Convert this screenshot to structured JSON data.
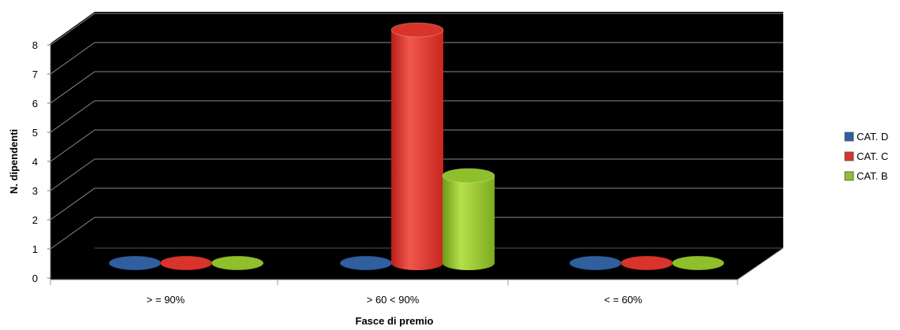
{
  "chart_data": {
    "type": "bar",
    "title": "",
    "xlabel": "Fasce di premio",
    "ylabel": "N. dipendenti",
    "ylim": [
      0,
      8
    ],
    "yticks": [
      "0",
      "1",
      "2",
      "3",
      "4",
      "5",
      "6",
      "7",
      "8"
    ],
    "categories": [
      "> = 90%",
      "> 60 <  90%",
      "< = 60%"
    ],
    "series": [
      {
        "name": "CAT. D",
        "values": [
          0,
          0,
          0
        ],
        "color": "#2f5f9f"
      },
      {
        "name": "CAT. C",
        "values": [
          0,
          8,
          0
        ],
        "color": "#d9342b"
      },
      {
        "name": "CAT. B",
        "values": [
          0,
          3,
          0
        ],
        "color": "#8fbf2a"
      }
    ],
    "plot_background": "#000000",
    "grid": true,
    "legend_position": "right",
    "style": "3d-cylinder"
  }
}
